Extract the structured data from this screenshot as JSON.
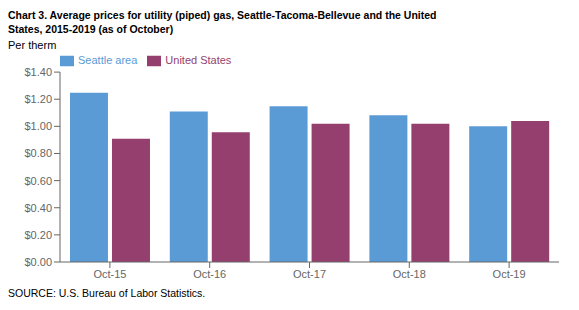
{
  "chart_data": {
    "type": "bar",
    "title": "Chart 3. Average prices for utility (piped) gas, Seattle-Tacoma-Bellevue and the United",
    "subtitle": "States, 2015-2019  (as of October)",
    "y_label": "Per therm",
    "annotations": [
      "SOURCE: U.S. Bureau of Labor Statistics."
    ],
    "categories": [
      "Oct-15",
      "Oct-16",
      "Oct-17",
      "Oct-18",
      "Oct-19"
    ],
    "series": [
      {
        "name": "Seattle area",
        "color": "#5B9BD5",
        "values": [
          1.247,
          1.11,
          1.148,
          1.081,
          1.0
        ]
      },
      {
        "name": "United States",
        "color": "#943F6E",
        "values": [
          0.909,
          0.957,
          1.02,
          1.019,
          1.04
        ]
      }
    ],
    "ylim": [
      0.0,
      1.4
    ],
    "yticks": [
      {
        "value": 0.0,
        "label": "$0.00"
      },
      {
        "value": 0.2,
        "label": "$0.20"
      },
      {
        "value": 0.4,
        "label": "$0.40"
      },
      {
        "value": 0.6,
        "label": "$0.60"
      },
      {
        "value": 0.8,
        "label": "$0.80"
      },
      {
        "value": 1.0,
        "label": "$1.00"
      },
      {
        "value": 1.2,
        "label": "$1.20"
      },
      {
        "value": 1.4,
        "label": "$1.40"
      }
    ],
    "grid": false,
    "legend": "upper left"
  }
}
